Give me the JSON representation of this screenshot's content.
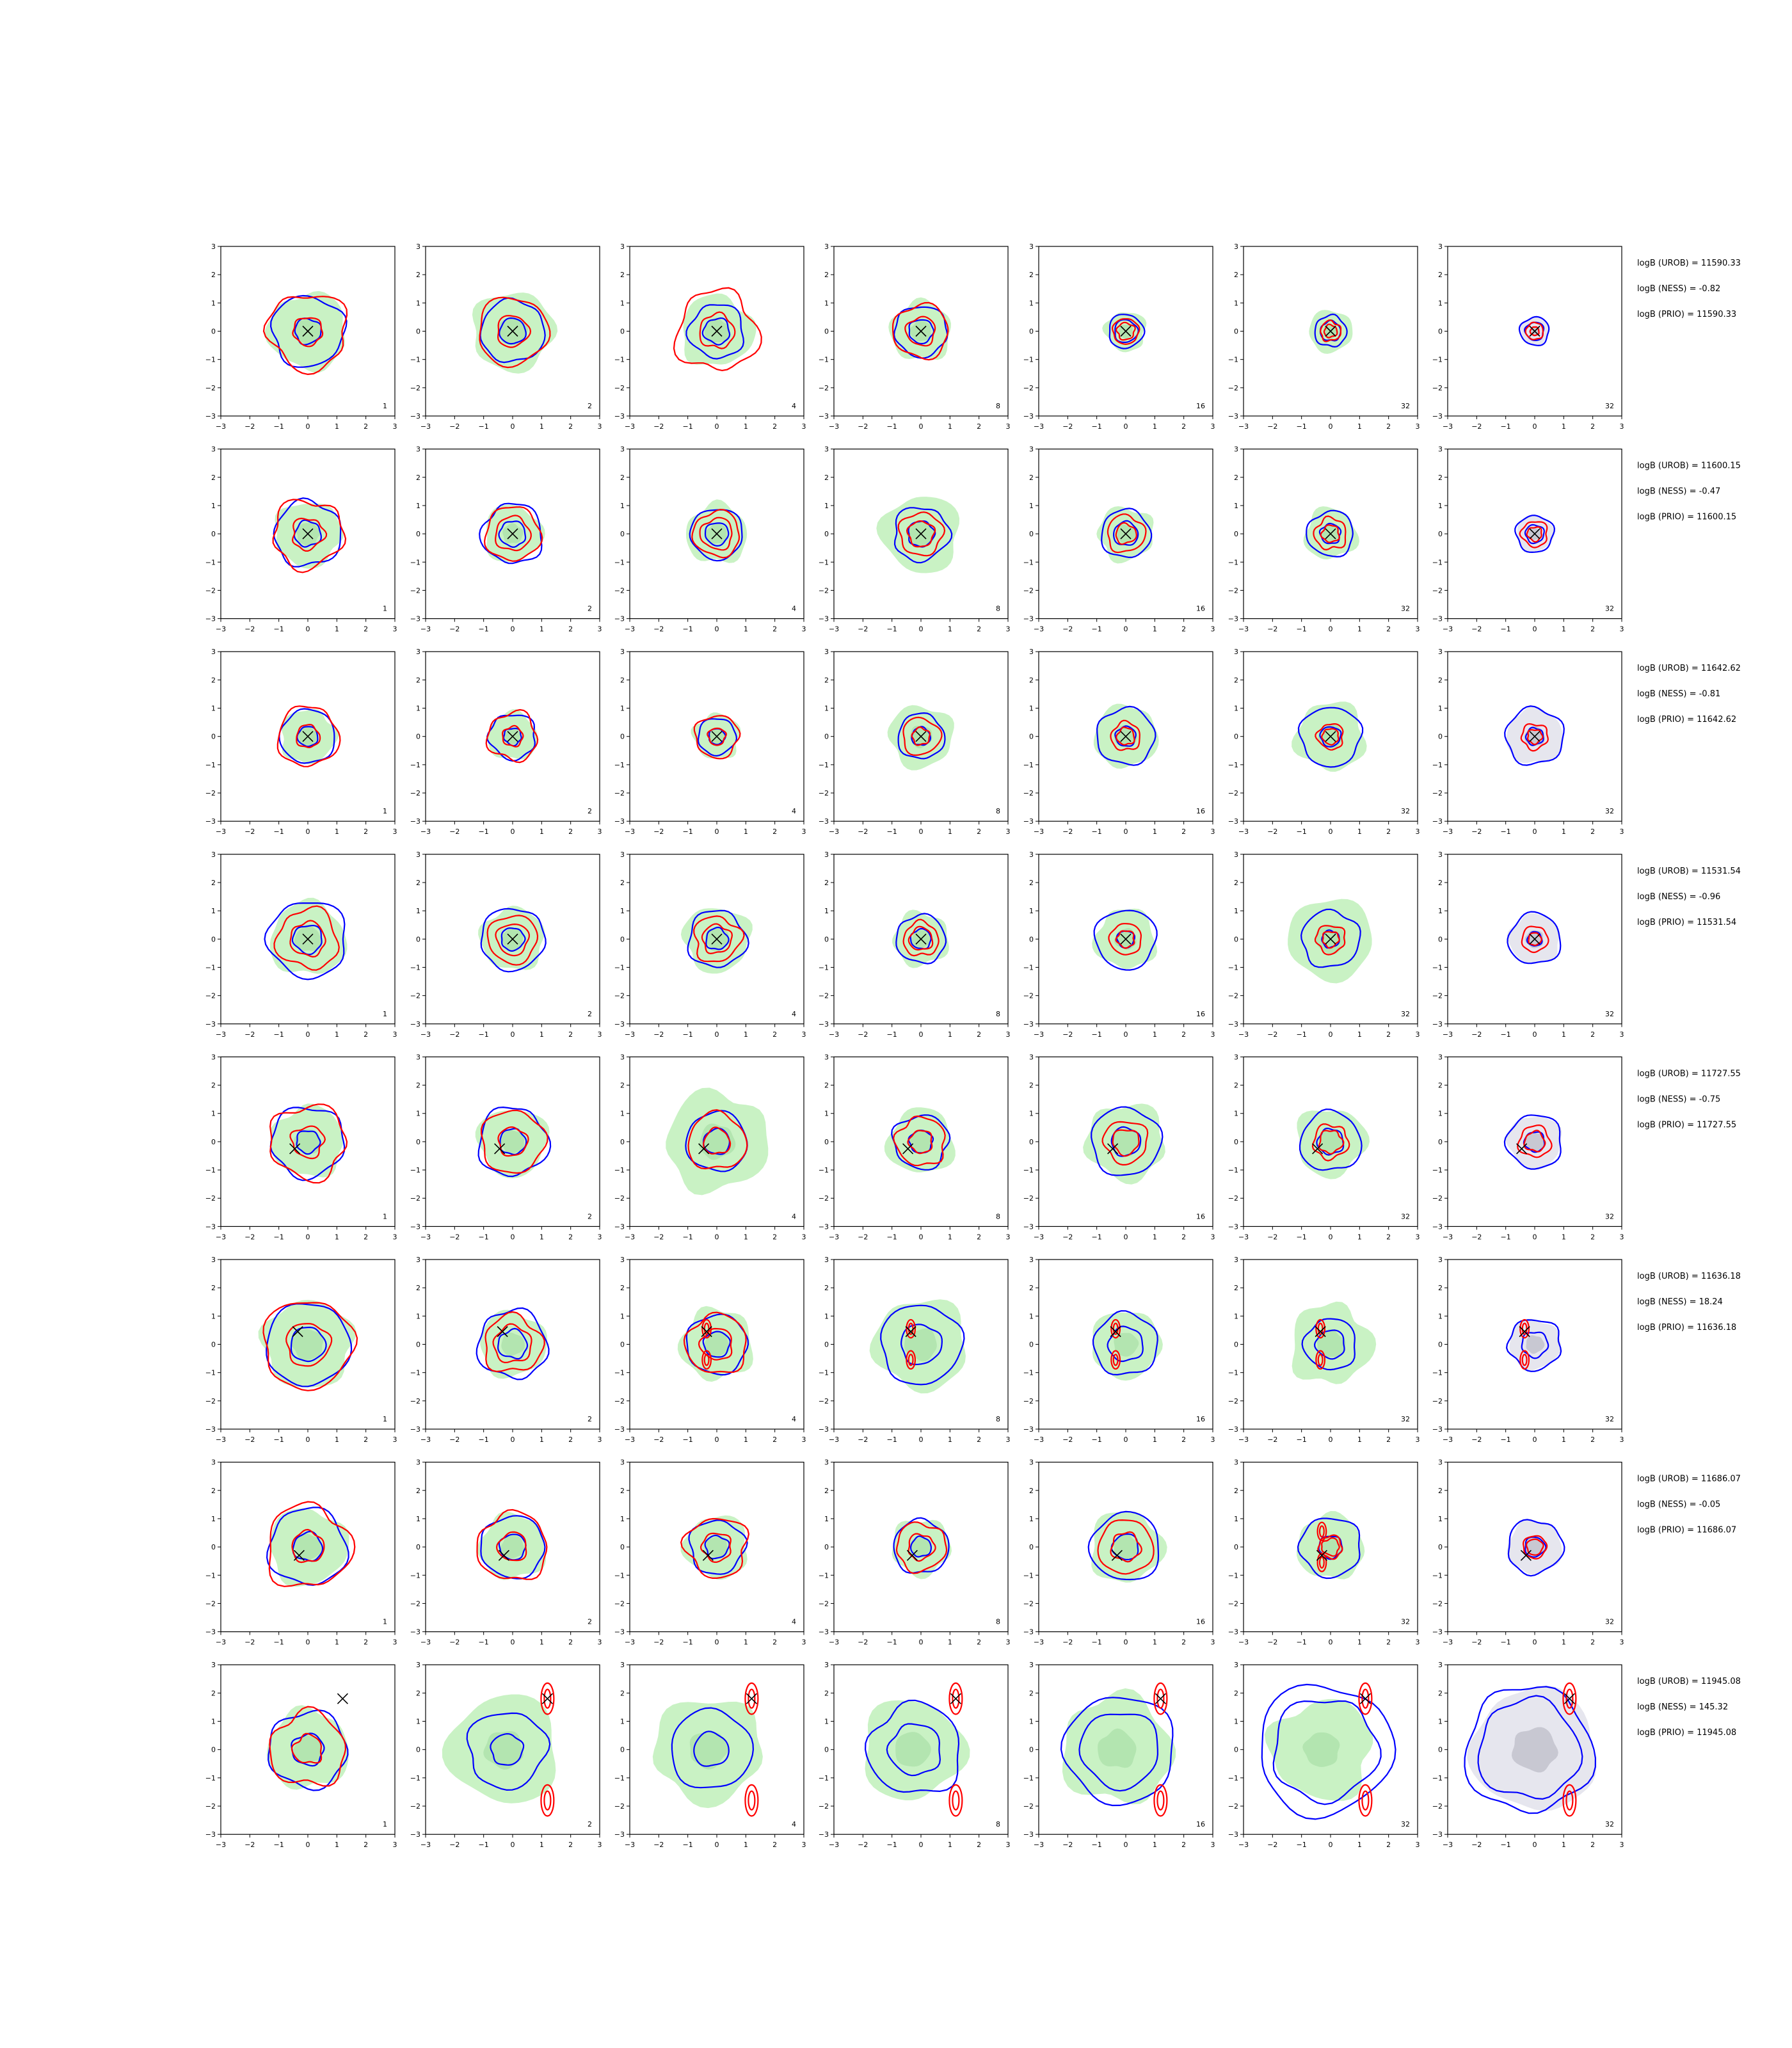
{
  "figure": {
    "layout": {
      "rows": 8,
      "cols": 7
    },
    "colors": {
      "blue_contour": "#0000ff",
      "red_contour": "#ff0000",
      "green_fill": "#c9f2c4",
      "green_fill_dark": "#a9e0a8",
      "gray_fill": "#e6e6ee",
      "marker": "#000000"
    },
    "axis_ticks": [
      "−3",
      "−2",
      "−1",
      "0",
      "1",
      "2",
      "3"
    ]
  },
  "chart_data": {
    "type": "contour",
    "xlim": [
      -3,
      3
    ],
    "ylim": [
      -3,
      3
    ],
    "grid": false,
    "panel_labels": [
      "1",
      "2",
      "4",
      "8",
      "16",
      "32",
      "32"
    ],
    "rows": [
      {
        "marker": [
          0,
          0
        ],
        "ann": [
          "logB (UROB) = 11590.33",
          "logB (NESS) = -0.82",
          "logB (PRIO) = 11590.33"
        ],
        "blue": [
          [
            1.25,
            0.45
          ],
          [
            1.1,
            0.45
          ],
          [
            0.95,
            0.45
          ],
          [
            0.9,
            0.42
          ],
          [
            0.6,
            0.4
          ],
          [
            0.55,
            0.35
          ],
          [
            0.5,
            0.32
          ]
        ],
        "red": [
          [
            1.35,
            0.5
          ],
          [
            1.2,
            0.55
          ],
          [
            1.4,
            0.6
          ],
          [
            0.95,
            0.5
          ],
          [
            0.45,
            0.3
          ],
          [
            0.35,
            0.22
          ],
          [
            0.3,
            0.15
          ]
        ],
        "green": [
          1.35,
          1.4,
          1.25,
          1.05,
          0.7,
          0.75,
          0
        ]
      },
      {
        "marker": [
          0,
          0
        ],
        "ann": [
          "logB (UROB) = 11600.15",
          "logB (NESS) = -0.47",
          "logB (PRIO) = 11600.15"
        ],
        "blue": [
          [
            1.15,
            0.45
          ],
          [
            1.05,
            0.45
          ],
          [
            0.9,
            0.4
          ],
          [
            0.95,
            0.45
          ],
          [
            0.85,
            0.42
          ],
          [
            0.8,
            0.35
          ],
          [
            0.65,
            0.32
          ]
        ],
        "red": [
          [
            1.2,
            0.55
          ],
          [
            0.95,
            0.6
          ],
          [
            0.8,
            0.55
          ],
          [
            0.75,
            0.45
          ],
          [
            0.65,
            0.35
          ],
          [
            0.55,
            0.3
          ],
          [
            0.45,
            0.25
          ]
        ],
        "green": [
          1.15,
          1.0,
          1.05,
          1.35,
          0.95,
          0.9,
          0
        ]
      },
      {
        "marker": [
          0,
          0
        ],
        "ann": [
          "logB (UROB) = 11642.62",
          "logB (NESS) = -0.81",
          "logB (PRIO) = 11642.62"
        ],
        "blue": [
          [
            0.95,
            0.35
          ],
          [
            0.8,
            0.3
          ],
          [
            0.65,
            0.28
          ],
          [
            0.8,
            0.32
          ],
          [
            1.0,
            0.35
          ],
          [
            1.05,
            0.35
          ],
          [
            1.0,
            0.3
          ]
        ],
        "red": [
          [
            1.05,
            0.4
          ],
          [
            0.85,
            0.35
          ],
          [
            0.75,
            0.3
          ],
          [
            0.65,
            0.3
          ],
          [
            0.5,
            0.3
          ],
          [
            0.45,
            0.28
          ],
          [
            0.45,
            0.25
          ]
        ],
        "green": [
          0.95,
          0.85,
          0.8,
          1.1,
          1.1,
          1.2,
          0
        ]
      },
      {
        "marker": [
          0,
          0
        ],
        "ann": [
          "logB (UROB) = 11531.54",
          "logB (NESS) = -0.96",
          "logB (PRIO) = 11531.54"
        ],
        "blue": [
          [
            1.35,
            0.5
          ],
          [
            1.1,
            0.4
          ],
          [
            1.0,
            0.38
          ],
          [
            0.85,
            0.35
          ],
          [
            1.05,
            0.3
          ],
          [
            1.0,
            0.3
          ],
          [
            0.9,
            0.25
          ]
        ],
        "red": [
          [
            1.05,
            0.6
          ],
          [
            0.85,
            0.55
          ],
          [
            0.8,
            0.5
          ],
          [
            0.6,
            0.4
          ],
          [
            0.55,
            0.3
          ],
          [
            0.5,
            0.28
          ],
          [
            0.45,
            0.22
          ]
        ],
        "green": [
          1.3,
          1.1,
          1.15,
          0.95,
          1.05,
          1.45,
          0
        ]
      },
      {
        "marker": [
          -0.45,
          -0.25
        ],
        "ann": [
          "logB (UROB) = 11727.55",
          "logB (NESS) = -0.75",
          "logB (PRIO) = 11727.55"
        ],
        "blue": [
          [
            1.25,
            0.4
          ],
          [
            1.2,
            0.45
          ],
          [
            1.05,
            0.45
          ],
          [
            0.95,
            0.4
          ],
          [
            1.2,
            0.5
          ],
          [
            1.05,
            0.45
          ],
          [
            0.95,
            0.35
          ]
        ],
        "red": [
          [
            1.3,
            0.55
          ],
          [
            1.1,
            0.5
          ],
          [
            1.0,
            0.45
          ],
          [
            0.85,
            0.4
          ],
          [
            0.75,
            0.45
          ],
          [
            0.6,
            0.4
          ],
          [
            0.55,
            0.35
          ]
        ],
        "green": [
          1.25,
          1.2,
          1.75,
          1.15,
          1.35,
          1.2,
          0
        ]
      },
      {
        "marker": [
          -0.35,
          0.45
        ],
        "ann": [
          "logB (UROB) = 11636.18",
          "logB (NESS) = 18.24",
          "logB (PRIO) = 11636.18"
        ],
        "blue": [
          [
            1.45,
            0.6
          ],
          [
            1.2,
            0.5
          ],
          [
            1.05,
            0.45
          ],
          [
            1.4,
            0.7
          ],
          [
            1.1,
            0.6
          ],
          [
            0.9,
            0.5
          ],
          [
            0.9,
            0.45
          ]
        ],
        "red": [
          [
            1.55,
            0.75
          ],
          [
            1.0,
            0.65
          ],
          [
            1.05,
            0.55
          ],
          [
            0,
            0
          ],
          [
            0,
            0
          ],
          [
            0,
            0
          ],
          [
            0,
            0
          ]
        ],
        "lobes": [
          false,
          false,
          true,
          true,
          true,
          true,
          true
        ],
        "green": [
          1.55,
          1.15,
          1.25,
          1.6,
          1.2,
          1.4,
          0
        ]
      },
      {
        "marker": [
          -0.3,
          -0.3
        ],
        "ann": [
          "logB (UROB) = 11686.07",
          "logB (NESS) = -0.05",
          "logB (PRIO) = 11686.07"
        ],
        "blue": [
          [
            1.35,
            0.5
          ],
          [
            1.1,
            0.45
          ],
          [
            0.95,
            0.4
          ],
          [
            0.95,
            0.35
          ],
          [
            1.2,
            0.45
          ],
          [
            1.05,
            0.4
          ],
          [
            0.95,
            0.35
          ]
        ],
        "red": [
          [
            1.45,
            0.55
          ],
          [
            1.2,
            0.5
          ],
          [
            1.05,
            0.5
          ],
          [
            0.85,
            0.45
          ],
          [
            0.95,
            0.5
          ],
          [
            0.4,
            0.3
          ],
          [
            0.4,
            0.28
          ]
        ],
        "lobes": [
          false,
          false,
          false,
          false,
          false,
          true,
          false
        ],
        "green": [
          1.35,
          1.15,
          1.1,
          1.0,
          1.25,
          1.15,
          0
        ]
      },
      {
        "marker": [
          1.2,
          1.8
        ],
        "ann": [
          "logB (UROB) = 11945.08",
          "logB (NESS) = 145.32",
          "logB (PRIO) = 11945.08"
        ],
        "blue": [
          [
            1.35,
            0.55
          ],
          [
            1.35,
            0.55
          ],
          [
            1.4,
            0.6
          ],
          [
            1.6,
            0.9
          ],
          [
            1.9,
            1.35
          ],
          [
            2.3,
            1.8
          ],
          [
            2.2,
            1.75
          ]
        ],
        "red": [
          [
            1.3,
            0.5
          ],
          [
            0,
            0
          ],
          [
            0,
            0
          ],
          [
            0,
            0
          ],
          [
            0,
            0
          ],
          [
            0,
            0
          ],
          [
            0,
            0
          ]
        ],
        "lobes": [
          false,
          true,
          true,
          true,
          true,
          true,
          true
        ],
        "green": [
          1.4,
          1.9,
          1.85,
          1.75,
          1.9,
          1.75,
          0
        ]
      }
    ]
  }
}
